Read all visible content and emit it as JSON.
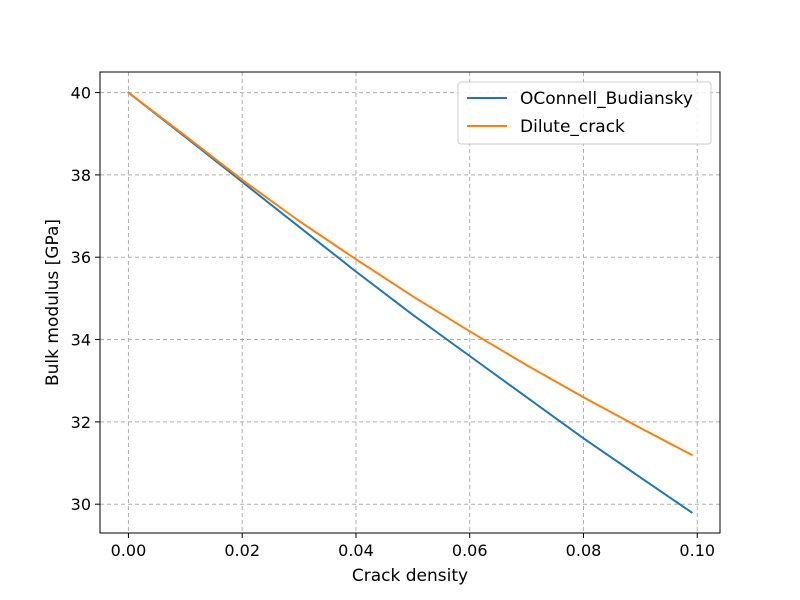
{
  "chart_data": {
    "type": "line",
    "title": "",
    "xlabel": "Crack density",
    "ylabel": "Bulk modulus [GPa]",
    "xlim": [
      -0.005,
      0.104
    ],
    "ylim": [
      29.3,
      40.5
    ],
    "xticks": [
      0.0,
      0.02,
      0.04,
      0.06,
      0.08,
      0.1
    ],
    "xtick_labels": [
      "0.00",
      "0.02",
      "0.04",
      "0.06",
      "0.08",
      "0.10"
    ],
    "yticks": [
      30,
      32,
      34,
      36,
      38,
      40
    ],
    "ytick_labels": [
      "30",
      "32",
      "34",
      "36",
      "38",
      "40"
    ],
    "grid": true,
    "legend_position": "top-right",
    "series": [
      {
        "name": "OConnell_Budiansky",
        "color": "#1f77b4",
        "x": [
          0.0,
          0.01,
          0.02,
          0.03,
          0.04,
          0.05,
          0.06,
          0.07,
          0.08,
          0.09,
          0.099
        ],
        "y": [
          40.0,
          38.92,
          37.83,
          36.74,
          35.65,
          34.6,
          33.6,
          32.6,
          31.6,
          30.65,
          29.8
        ]
      },
      {
        "name": "Dilute_crack",
        "color": "#ff7f0e",
        "x": [
          0.0,
          0.01,
          0.02,
          0.03,
          0.04,
          0.05,
          0.06,
          0.07,
          0.08,
          0.09,
          0.099
        ],
        "y": [
          40.0,
          38.95,
          37.88,
          36.88,
          35.95,
          35.05,
          34.2,
          33.38,
          32.6,
          31.85,
          31.2
        ]
      }
    ]
  }
}
